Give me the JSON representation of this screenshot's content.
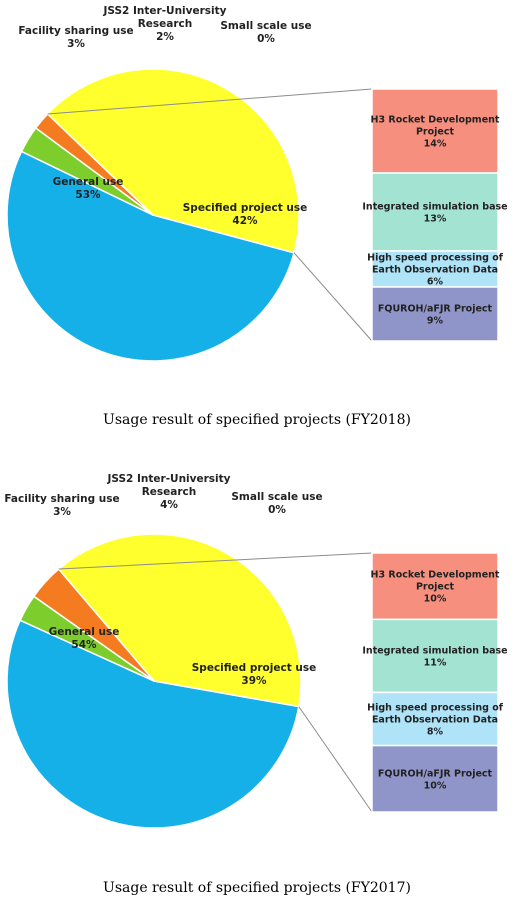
{
  "charts": [
    {
      "chart_data": {
        "type": "pie",
        "caption": "Usage result of specified projects (FY2018)",
        "slices": [
          {
            "name": "General use",
            "label_lines": [
              "General use",
              "53%"
            ],
            "value": 53,
            "color": "#15B0E8"
          },
          {
            "name": "Facility sharing use",
            "label_lines": [
              "Facility sharing use",
              "3%"
            ],
            "value": 3,
            "color": "#7DCE2C"
          },
          {
            "name": "JSS2 Inter-University Research",
            "label_lines": [
              "JSS2 Inter-University",
              "Research",
              "2%"
            ],
            "value": 2,
            "color": "#F47B20"
          },
          {
            "name": "Small scale use",
            "label_lines": [
              "Small scale use",
              "0%"
            ],
            "value": 0,
            "color": "#9A9A9A"
          },
          {
            "name": "Specified project use",
            "label_lines": [
              "Specified project use",
              "42%"
            ],
            "value": 42,
            "color": "#FFFF2E"
          }
        ],
        "breakdown": [
          {
            "name": "H3 Rocket Development Project",
            "label_lines": [
              "H3 Rocket Development",
              "Project",
              "14%"
            ],
            "value": 14,
            "color": "#F68F7E"
          },
          {
            "name": "Integrated simulation base",
            "label_lines": [
              "Integrated simulation base",
              "13%"
            ],
            "value": 13,
            "color": "#A3E3D2"
          },
          {
            "name": "High speed processing of Earth Observation Data",
            "label_lines": [
              "High speed processing of",
              "Earth Observation Data",
              "6%"
            ],
            "value": 6,
            "color": "#AEE3F8"
          },
          {
            "name": "FQUROH/aFJR Project",
            "label_lines": [
              "FQUROH/aFJR Project",
              "9%"
            ],
            "value": 9,
            "color": "#8F95C8"
          }
        ]
      }
    },
    {
      "chart_data": {
        "type": "pie",
        "caption": "Usage result of specified projects (FY2017)",
        "slices": [
          {
            "name": "General use",
            "label_lines": [
              "General use",
              "54%"
            ],
            "value": 54,
            "color": "#15B0E8"
          },
          {
            "name": "Facility sharing use",
            "label_lines": [
              "Facility sharing use",
              "3%"
            ],
            "value": 3,
            "color": "#7DCE2C"
          },
          {
            "name": "JSS2 Inter-University Research",
            "label_lines": [
              "JSS2 Inter-University",
              "Research",
              "4%"
            ],
            "value": 4,
            "color": "#F47B20"
          },
          {
            "name": "Small scale use",
            "label_lines": [
              "Small scale use",
              "0%"
            ],
            "value": 0,
            "color": "#9A9A9A"
          },
          {
            "name": "Specified project use",
            "label_lines": [
              "Specified project use",
              "39%"
            ],
            "value": 39,
            "color": "#FFFF2E"
          }
        ],
        "breakdown": [
          {
            "name": "H3 Rocket Development Project",
            "label_lines": [
              "H3 Rocket Development",
              "Project",
              "10%"
            ],
            "value": 10,
            "color": "#F68F7E"
          },
          {
            "name": "Integrated simulation base",
            "label_lines": [
              "Integrated simulation base",
              "11%"
            ],
            "value": 11,
            "color": "#A3E3D2"
          },
          {
            "name": "High speed processing of Earth Observation Data",
            "label_lines": [
              "High speed processing of",
              "Earth Observation Data",
              "8%"
            ],
            "value": 8,
            "color": "#AEE3F8"
          },
          {
            "name": "FQUROH/aFJR Project",
            "label_lines": [
              "FQUROH/aFJR Project",
              "10%"
            ],
            "value": 10,
            "color": "#8F95C8"
          }
        ]
      }
    }
  ]
}
